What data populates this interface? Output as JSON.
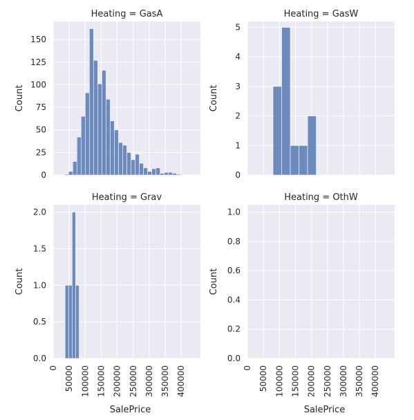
{
  "chart_data": [
    {
      "type": "bar",
      "title": "Heating = GasA",
      "ylabel": "Count",
      "xlabel": "",
      "xlim": [
        0,
        460000
      ],
      "ylim": [
        0,
        170
      ],
      "yticks": [
        "0",
        "25",
        "50",
        "75",
        "100",
        "125",
        "150"
      ],
      "ytick_values": [
        0,
        25,
        50,
        75,
        100,
        125,
        150
      ],
      "xticks": [],
      "xtick_values": [
        0,
        50000,
        100000,
        150000,
        200000,
        250000,
        300000,
        350000,
        400000
      ],
      "bin_start": 35000,
      "bin_width": 13000,
      "values": [
        1,
        4,
        15,
        42,
        65,
        91,
        162,
        127,
        101,
        116,
        84,
        60,
        50,
        36,
        33,
        25,
        17,
        23,
        13,
        8,
        4,
        7,
        8,
        2,
        3,
        3,
        2,
        1
      ]
    },
    {
      "type": "bar",
      "title": "Heating = GasW",
      "ylabel": "Count",
      "xlabel": "",
      "xlim": [
        0,
        460000
      ],
      "ylim": [
        0,
        5.2
      ],
      "yticks": [
        "0",
        "1",
        "2",
        "3",
        "4",
        "5"
      ],
      "ytick_values": [
        0,
        1,
        2,
        3,
        4,
        5
      ],
      "xticks": [],
      "xtick_values": [
        0,
        50000,
        100000,
        150000,
        200000,
        250000,
        300000,
        350000,
        400000
      ],
      "bin_start": 80000,
      "bin_width": 27000,
      "values": [
        3,
        5,
        1,
        1,
        2
      ]
    },
    {
      "type": "bar",
      "title": "Heating = Grav",
      "ylabel": "Count",
      "xlabel": "SalePrice",
      "xlim": [
        0,
        460000
      ],
      "ylim": [
        0,
        2.1
      ],
      "yticks": [
        "0.0",
        "0.5",
        "1.0",
        "1.5",
        "2.0"
      ],
      "ytick_values": [
        0,
        0.5,
        1,
        1.5,
        2
      ],
      "xticks": [
        "0",
        "50000",
        "100000",
        "150000",
        "200000",
        "250000",
        "300000",
        "350000",
        "400000"
      ],
      "xtick_values": [
        0,
        50000,
        100000,
        150000,
        200000,
        250000,
        300000,
        350000,
        400000
      ],
      "bin_start": 37000,
      "bin_width": 11000,
      "values": [
        1,
        1,
        2,
        1
      ]
    },
    {
      "type": "bar",
      "title": "Heating = OthW",
      "ylabel": "Count",
      "xlabel": "SalePrice",
      "xlim": [
        0,
        460000
      ],
      "ylim": [
        0,
        1.05
      ],
      "yticks": [
        "0.0",
        "0.2",
        "0.4",
        "0.6",
        "0.8",
        "1.0"
      ],
      "ytick_values": [
        0,
        0.2,
        0.4,
        0.6,
        0.8,
        1.0
      ],
      "xticks": [
        "0",
        "50000",
        "100000",
        "150000",
        "200000",
        "250000",
        "300000",
        "350000",
        "400000"
      ],
      "xtick_values": [
        0,
        50000,
        100000,
        150000,
        200000,
        250000,
        300000,
        350000,
        400000
      ],
      "bin_start": 0,
      "bin_width": 0,
      "values": []
    }
  ]
}
